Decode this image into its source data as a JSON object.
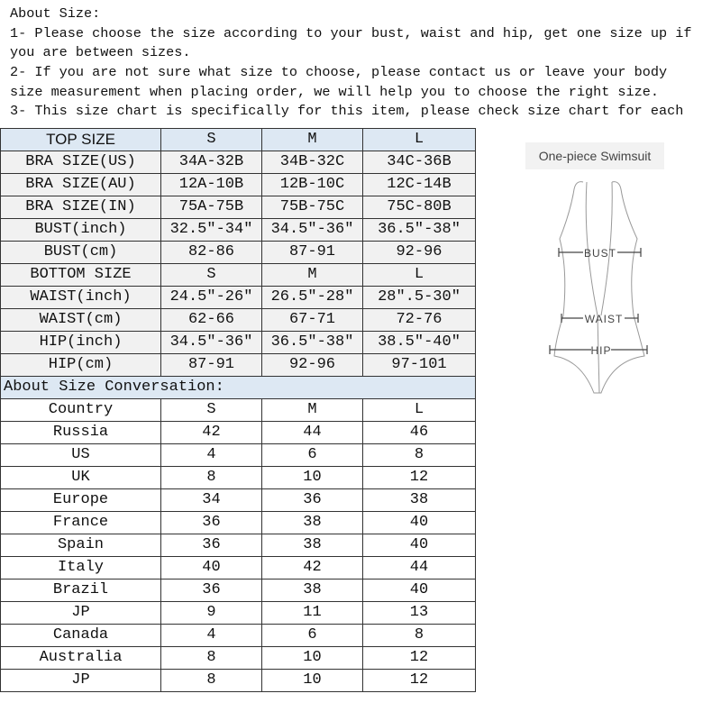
{
  "intro": {
    "lines": [
      "About Size:",
      "1- Please choose the size according to your bust, waist and hip, get one size up if",
      "you are between sizes.",
      "2- If you are not sure what size to choose, please contact us or leave your body",
      "size measurement when placing order, we will help you to choose the right size.",
      "3- This size chart is specifically for this item, please check size chart for each"
    ]
  },
  "top_table": {
    "header": [
      "TOP SIZE",
      "S",
      "M",
      "L"
    ],
    "rows": [
      [
        "BRA SIZE(US)",
        "34A-32B",
        "34B-32C",
        "34C-36B"
      ],
      [
        "BRA SIZE(AU)",
        "12A-10B",
        "12B-10C",
        "12C-14B"
      ],
      [
        "BRA SIZE(IN)",
        "75A-75B",
        "75B-75C",
        "75C-80B"
      ],
      [
        "BUST(inch)",
        "32.5″-34″",
        "34.5″-36″",
        "36.5″-38″"
      ],
      [
        "BUST(cm)",
        "82-86",
        "87-91",
        "92-96"
      ],
      [
        "BOTTOM SIZE",
        "S",
        "M",
        "L"
      ],
      [
        "WAIST(inch)",
        "24.5″-26″",
        "26.5″-28″",
        "28″.5-30″"
      ],
      [
        "WAIST(cm)",
        "62-66",
        "67-71",
        "72-76"
      ],
      [
        "HIP(inch)",
        "34.5″-36″",
        "36.5″-38″",
        "38.5″-40″"
      ],
      [
        "HIP(cm)",
        "87-91",
        "92-96",
        "97-101"
      ]
    ]
  },
  "conversion": {
    "title": "About Size Conversation:",
    "header": [
      "Country",
      "S",
      "M",
      "L"
    ],
    "rows": [
      [
        "Russia",
        "42",
        "44",
        "46"
      ],
      [
        "US",
        "4",
        "6",
        "8"
      ],
      [
        "UK",
        "8",
        "10",
        "12"
      ],
      [
        "Europe",
        "34",
        "36",
        "38"
      ],
      [
        "France",
        "36",
        "38",
        "40"
      ],
      [
        "Spain",
        "36",
        "38",
        "40"
      ],
      [
        "Italy",
        "40",
        "42",
        "44"
      ],
      [
        "Brazil",
        "36",
        "38",
        "40"
      ],
      [
        "JP",
        "9",
        "11",
        "13"
      ],
      [
        "Canada",
        "4",
        "6",
        "8"
      ],
      [
        "Australia",
        "8",
        "10",
        "12"
      ],
      [
        "JP",
        "8",
        "10",
        "12"
      ]
    ]
  },
  "figure": {
    "title": "One-piece Swimsuit",
    "labels": {
      "bust": "BUST",
      "waist": "WAIST",
      "hip": "HIP"
    }
  }
}
